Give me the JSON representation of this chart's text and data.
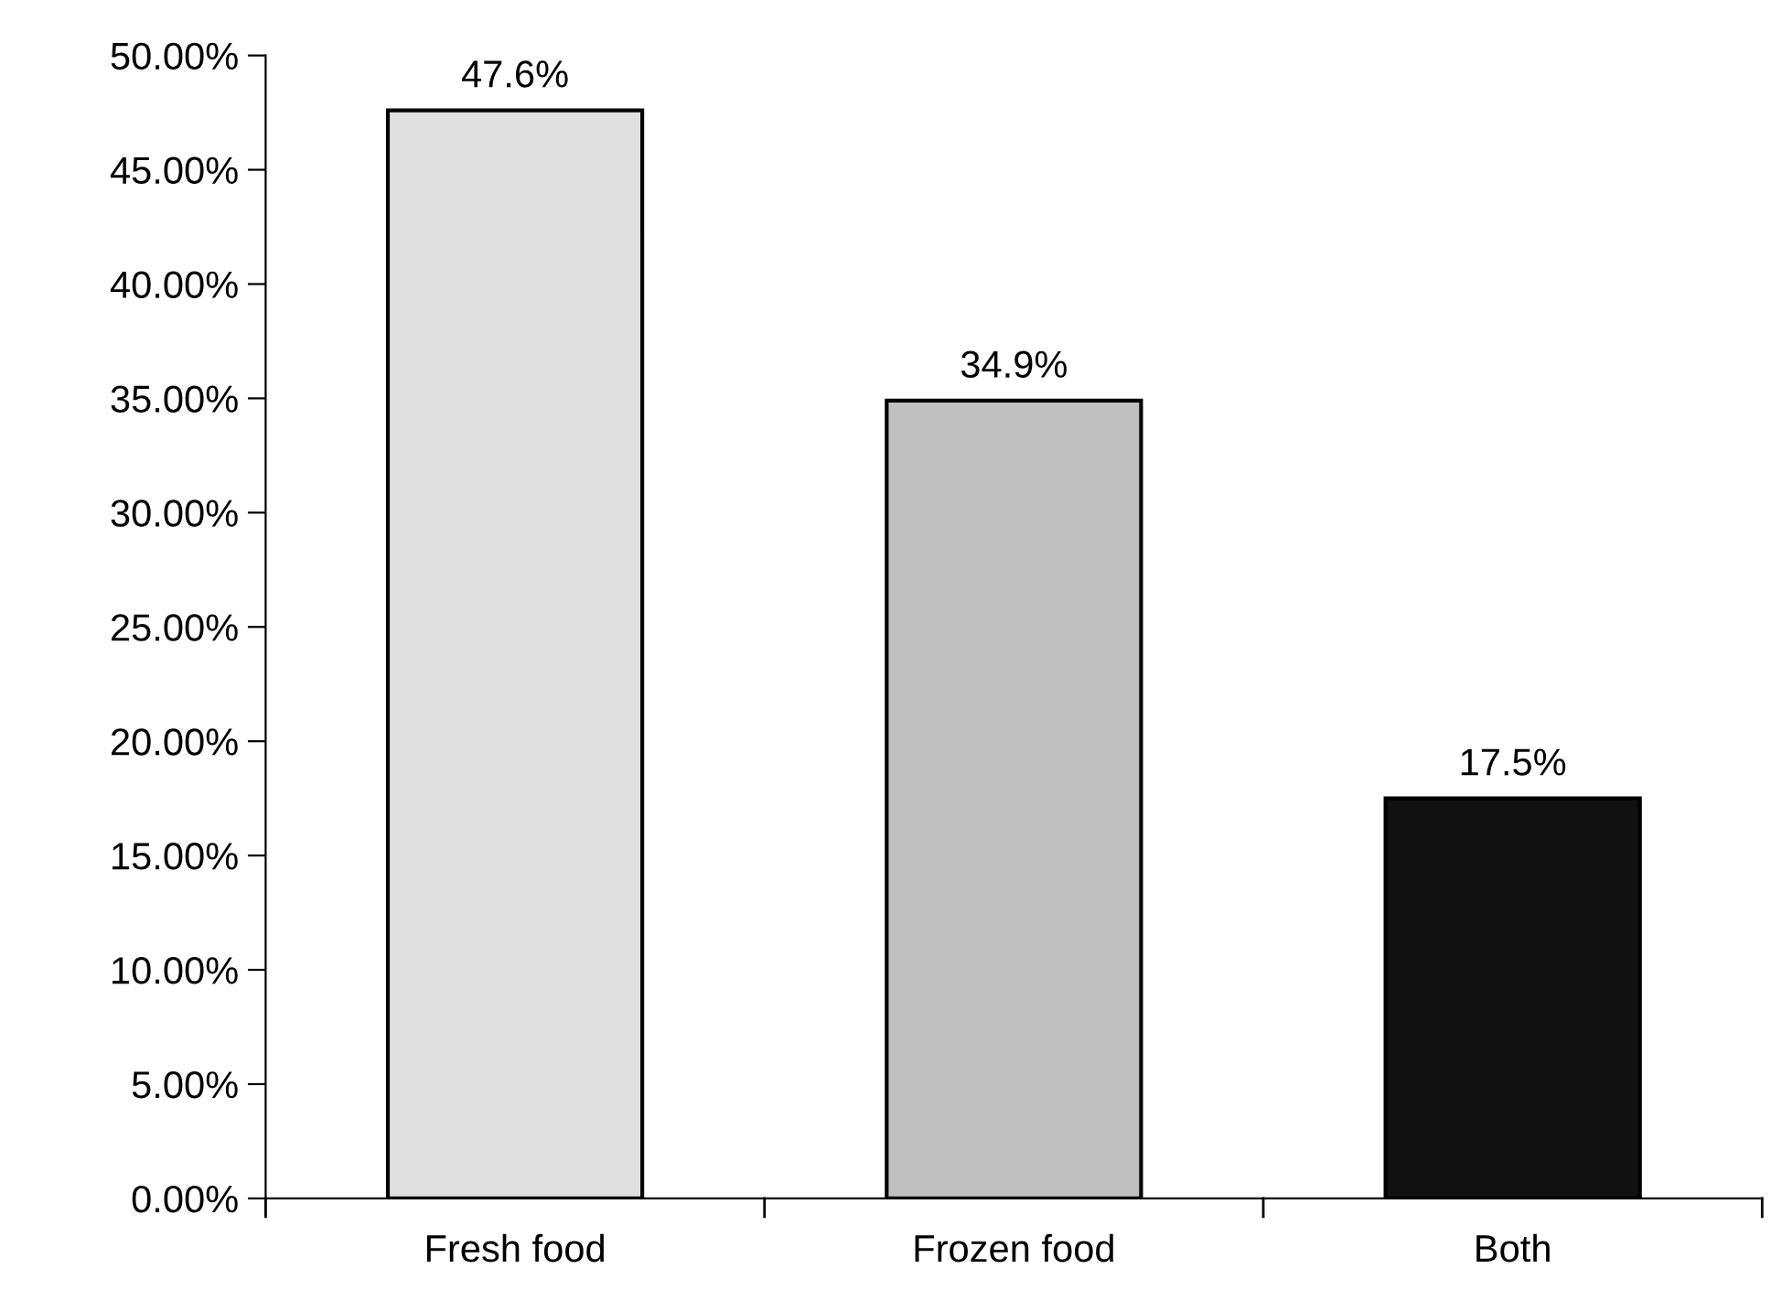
{
  "chart_data": {
    "type": "bar",
    "categories": [
      "Fresh food",
      "Frozen food",
      "Both"
    ],
    "values": [
      47.6,
      34.9,
      17.5
    ],
    "colors": [
      "#e0e0e0",
      "#c0c0c0",
      "#111111"
    ],
    "value_labels": [
      "47.6%",
      "34.9%",
      "17.5%"
    ],
    "ylim": [
      0,
      50
    ],
    "yticks": [
      {
        "value": 0,
        "label": "0.00%"
      },
      {
        "value": 5,
        "label": "5.00%"
      },
      {
        "value": 10,
        "label": "10.00%"
      },
      {
        "value": 15,
        "label": "15.00%"
      },
      {
        "value": 20,
        "label": "20.00%"
      },
      {
        "value": 25,
        "label": "25.00%"
      },
      {
        "value": 30,
        "label": "30.00%"
      },
      {
        "value": 35,
        "label": "35.00%"
      },
      {
        "value": 40,
        "label": "40.00%"
      },
      {
        "value": 45,
        "label": "45.00%"
      },
      {
        "value": 50,
        "label": "50.00%"
      }
    ],
    "grid": false,
    "legend": false
  }
}
